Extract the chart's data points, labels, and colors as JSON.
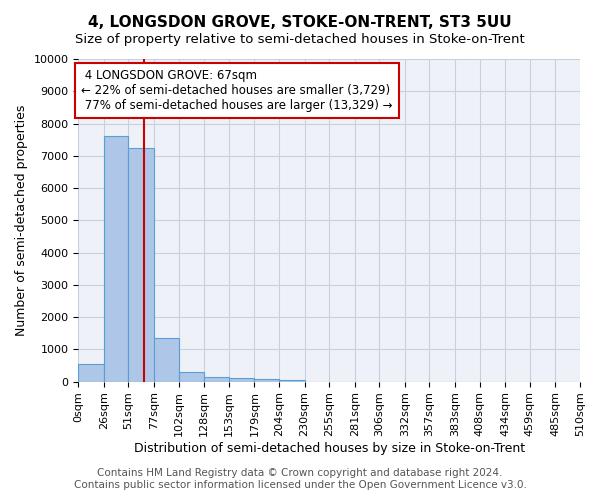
{
  "title": "4, LONGSDON GROVE, STOKE-ON-TRENT, ST3 5UU",
  "subtitle": "Size of property relative to semi-detached houses in Stoke-on-Trent",
  "xlabel": "Distribution of semi-detached houses by size in Stoke-on-Trent",
  "ylabel": "Number of semi-detached properties",
  "footer1": "Contains HM Land Registry data © Crown copyright and database right 2024.",
  "footer2": "Contains public sector information licensed under the Open Government Licence v3.0.",
  "bin_edges": [
    0,
    26,
    51,
    77,
    102,
    128,
    153,
    179,
    204,
    230,
    255,
    281,
    306,
    332,
    357,
    383,
    408,
    434,
    459,
    485,
    510
  ],
  "bar_heights": [
    550,
    7600,
    7250,
    1350,
    300,
    150,
    100,
    75,
    50,
    0,
    0,
    0,
    0,
    0,
    0,
    0,
    0,
    0,
    0,
    0
  ],
  "bar_color": "#aec6e8",
  "bar_edgecolor": "#5a9fd4",
  "property_size": 67,
  "property_label": "4 LONGSDON GROVE: 67sqm",
  "pct_smaller": 22,
  "count_smaller": "3,729",
  "pct_larger": 77,
  "count_larger": "13,329",
  "annotation_box_color": "#cc0000",
  "vline_color": "#cc0000",
  "ylim": [
    0,
    10000
  ],
  "yticks": [
    0,
    1000,
    2000,
    3000,
    4000,
    5000,
    6000,
    7000,
    8000,
    9000,
    10000
  ],
  "grid_color": "#c8d0e0",
  "bg_color": "#eef2f8",
  "title_fontsize": 11,
  "subtitle_fontsize": 9.5,
  "xlabel_fontsize": 9,
  "ylabel_fontsize": 9,
  "tick_fontsize": 8,
  "annotation_fontsize": 8.5,
  "footer_fontsize": 7.5
}
